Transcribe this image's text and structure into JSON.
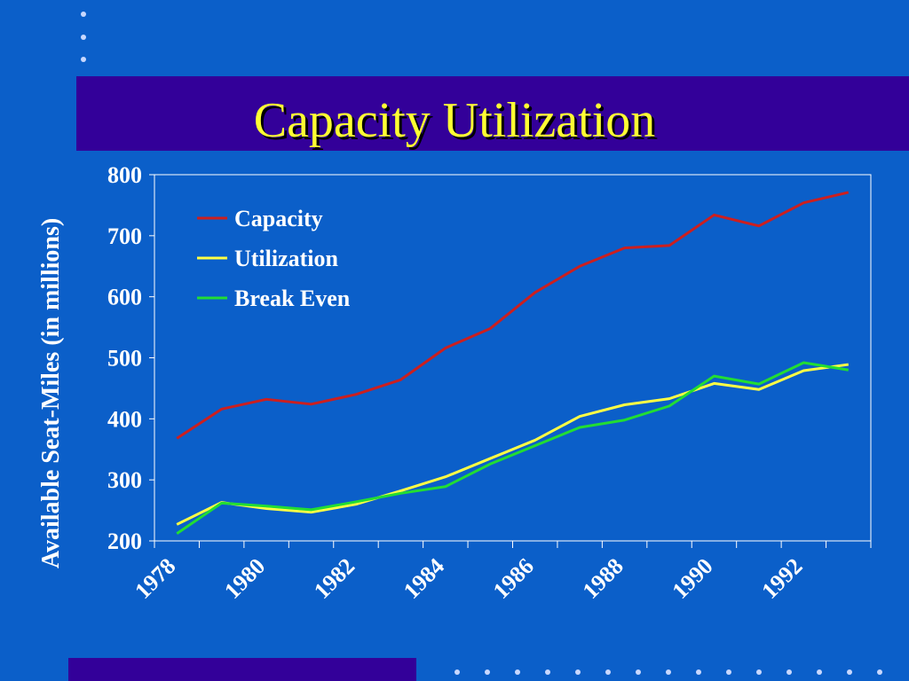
{
  "slide": {
    "title": "Capacity Utilization",
    "colors": {
      "background": "#0b5fc9",
      "band": "#330099",
      "title": "#ffff33",
      "axis": "#ffffff"
    }
  },
  "chart_data": {
    "type": "line",
    "title": "Capacity Utilization",
    "ylabel": "Available Seat-Miles (in millions)",
    "xlabel": "",
    "ylim": [
      200,
      800
    ],
    "yticks": [
      200,
      300,
      400,
      500,
      600,
      700,
      800
    ],
    "xlim": [
      1977.5,
      1993.5
    ],
    "xtick_labels": [
      "1978",
      "1980",
      "1982",
      "1984",
      "1986",
      "1988",
      "1990",
      "1992"
    ],
    "x": [
      1978,
      1979,
      1980,
      1981,
      1982,
      1983,
      1984,
      1985,
      1986,
      1987,
      1988,
      1989,
      1990,
      1991,
      1992,
      1993
    ],
    "grid": false,
    "legend": "top-left",
    "series": [
      {
        "name": "Capacity",
        "color": "#cc1f1f",
        "values": [
          368,
          416,
          432,
          424,
          440,
          464,
          516,
          548,
          607,
          650,
          680,
          684,
          734,
          716,
          754,
          771
        ]
      },
      {
        "name": "Utilization",
        "color": "#ffff44",
        "values": [
          227,
          263,
          253,
          247,
          260,
          282,
          305,
          335,
          365,
          404,
          423,
          433,
          458,
          448,
          479,
          489
        ]
      },
      {
        "name": "Break Even",
        "color": "#22dd33",
        "values": [
          212,
          262,
          257,
          251,
          264,
          278,
          289,
          326,
          356,
          386,
          398,
          421,
          470,
          457,
          492,
          480
        ]
      }
    ]
  }
}
